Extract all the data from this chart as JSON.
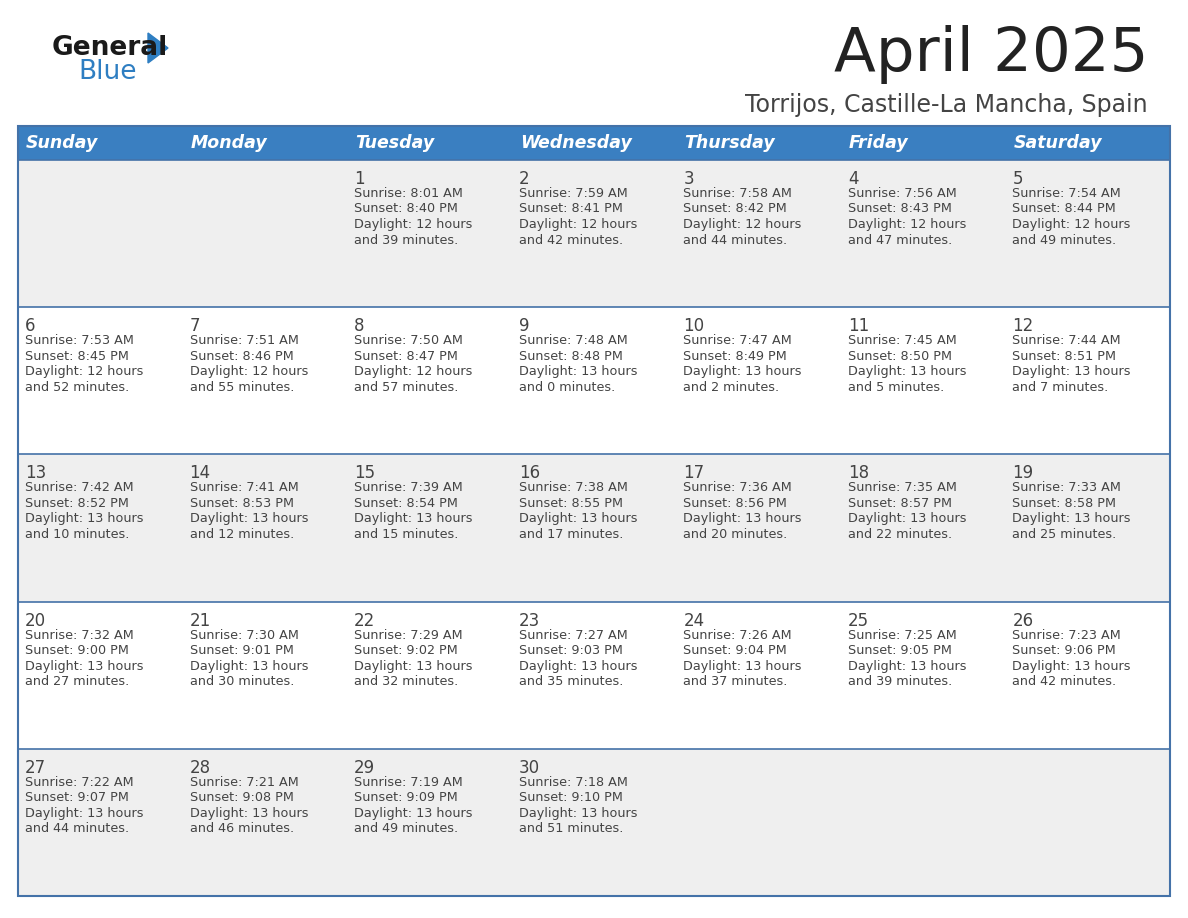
{
  "title": "April 2025",
  "subtitle": "Torrijos, Castille-La Mancha, Spain",
  "days_of_week": [
    "Sunday",
    "Monday",
    "Tuesday",
    "Wednesday",
    "Thursday",
    "Friday",
    "Saturday"
  ],
  "header_bg": "#3A7FC1",
  "header_text": "#FFFFFF",
  "row_bg_odd": "#EFEFEF",
  "row_bg_even": "#FFFFFF",
  "cell_text": "#444444",
  "divider_color": "#4472A8",
  "title_color": "#222222",
  "subtitle_color": "#444444",
  "calendar_data": [
    [
      {
        "day": "",
        "sunrise": "",
        "sunset": "",
        "daylight": ""
      },
      {
        "day": "",
        "sunrise": "",
        "sunset": "",
        "daylight": ""
      },
      {
        "day": "1",
        "sunrise": "8:01 AM",
        "sunset": "8:40 PM",
        "daylight": "12 hours and 39 minutes."
      },
      {
        "day": "2",
        "sunrise": "7:59 AM",
        "sunset": "8:41 PM",
        "daylight": "12 hours and 42 minutes."
      },
      {
        "day": "3",
        "sunrise": "7:58 AM",
        "sunset": "8:42 PM",
        "daylight": "12 hours and 44 minutes."
      },
      {
        "day": "4",
        "sunrise": "7:56 AM",
        "sunset": "8:43 PM",
        "daylight": "12 hours and 47 minutes."
      },
      {
        "day": "5",
        "sunrise": "7:54 AM",
        "sunset": "8:44 PM",
        "daylight": "12 hours and 49 minutes."
      }
    ],
    [
      {
        "day": "6",
        "sunrise": "7:53 AM",
        "sunset": "8:45 PM",
        "daylight": "12 hours and 52 minutes."
      },
      {
        "day": "7",
        "sunrise": "7:51 AM",
        "sunset": "8:46 PM",
        "daylight": "12 hours and 55 minutes."
      },
      {
        "day": "8",
        "sunrise": "7:50 AM",
        "sunset": "8:47 PM",
        "daylight": "12 hours and 57 minutes."
      },
      {
        "day": "9",
        "sunrise": "7:48 AM",
        "sunset": "8:48 PM",
        "daylight": "13 hours and 0 minutes."
      },
      {
        "day": "10",
        "sunrise": "7:47 AM",
        "sunset": "8:49 PM",
        "daylight": "13 hours and 2 minutes."
      },
      {
        "day": "11",
        "sunrise": "7:45 AM",
        "sunset": "8:50 PM",
        "daylight": "13 hours and 5 minutes."
      },
      {
        "day": "12",
        "sunrise": "7:44 AM",
        "sunset": "8:51 PM",
        "daylight": "13 hours and 7 minutes."
      }
    ],
    [
      {
        "day": "13",
        "sunrise": "7:42 AM",
        "sunset": "8:52 PM",
        "daylight": "13 hours and 10 minutes."
      },
      {
        "day": "14",
        "sunrise": "7:41 AM",
        "sunset": "8:53 PM",
        "daylight": "13 hours and 12 minutes."
      },
      {
        "day": "15",
        "sunrise": "7:39 AM",
        "sunset": "8:54 PM",
        "daylight": "13 hours and 15 minutes."
      },
      {
        "day": "16",
        "sunrise": "7:38 AM",
        "sunset": "8:55 PM",
        "daylight": "13 hours and 17 minutes."
      },
      {
        "day": "17",
        "sunrise": "7:36 AM",
        "sunset": "8:56 PM",
        "daylight": "13 hours and 20 minutes."
      },
      {
        "day": "18",
        "sunrise": "7:35 AM",
        "sunset": "8:57 PM",
        "daylight": "13 hours and 22 minutes."
      },
      {
        "day": "19",
        "sunrise": "7:33 AM",
        "sunset": "8:58 PM",
        "daylight": "13 hours and 25 minutes."
      }
    ],
    [
      {
        "day": "20",
        "sunrise": "7:32 AM",
        "sunset": "9:00 PM",
        "daylight": "13 hours and 27 minutes."
      },
      {
        "day": "21",
        "sunrise": "7:30 AM",
        "sunset": "9:01 PM",
        "daylight": "13 hours and 30 minutes."
      },
      {
        "day": "22",
        "sunrise": "7:29 AM",
        "sunset": "9:02 PM",
        "daylight": "13 hours and 32 minutes."
      },
      {
        "day": "23",
        "sunrise": "7:27 AM",
        "sunset": "9:03 PM",
        "daylight": "13 hours and 35 minutes."
      },
      {
        "day": "24",
        "sunrise": "7:26 AM",
        "sunset": "9:04 PM",
        "daylight": "13 hours and 37 minutes."
      },
      {
        "day": "25",
        "sunrise": "7:25 AM",
        "sunset": "9:05 PM",
        "daylight": "13 hours and 39 minutes."
      },
      {
        "day": "26",
        "sunrise": "7:23 AM",
        "sunset": "9:06 PM",
        "daylight": "13 hours and 42 minutes."
      }
    ],
    [
      {
        "day": "27",
        "sunrise": "7:22 AM",
        "sunset": "9:07 PM",
        "daylight": "13 hours and 44 minutes."
      },
      {
        "day": "28",
        "sunrise": "7:21 AM",
        "sunset": "9:08 PM",
        "daylight": "13 hours and 46 minutes."
      },
      {
        "day": "29",
        "sunrise": "7:19 AM",
        "sunset": "9:09 PM",
        "daylight": "13 hours and 49 minutes."
      },
      {
        "day": "30",
        "sunrise": "7:18 AM",
        "sunset": "9:10 PM",
        "daylight": "13 hours and 51 minutes."
      },
      {
        "day": "",
        "sunrise": "",
        "sunset": "",
        "daylight": ""
      },
      {
        "day": "",
        "sunrise": "",
        "sunset": "",
        "daylight": ""
      },
      {
        "day": "",
        "sunrise": "",
        "sunset": "",
        "daylight": ""
      }
    ]
  ]
}
